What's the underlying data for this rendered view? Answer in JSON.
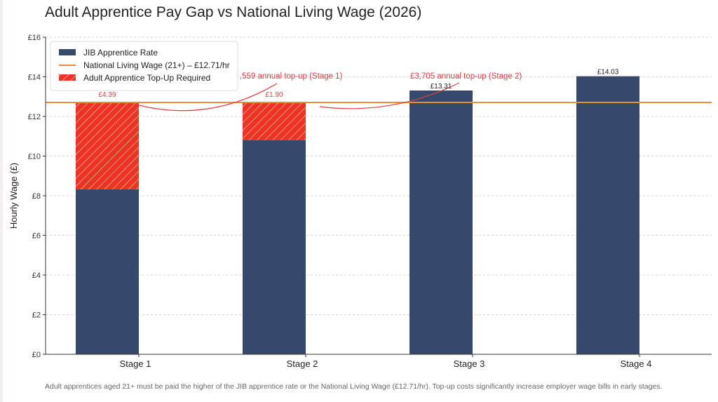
{
  "chart_data": {
    "type": "bar",
    "title": "Adult Apprentice Pay Gap vs National Living Wage (2026)",
    "ylabel": "Hourly Wage (£)",
    "xlabel": "",
    "ylim": [
      0,
      16
    ],
    "yticks": [
      0,
      2,
      4,
      6,
      8,
      10,
      12,
      14,
      16
    ],
    "ytick_labels": [
      "£0",
      "£2",
      "£4",
      "£6",
      "£8",
      "£10",
      "£12",
      "£14",
      "£16"
    ],
    "grid": "horizontal dashed",
    "categories": [
      "Stage 1",
      "Stage 2",
      "Stage 3",
      "Stage 4"
    ],
    "series": [
      {
        "name": "JIB Apprentice Rate",
        "values": [
          8.32,
          10.81,
          13.31,
          14.03
        ],
        "labels": [
          "£8.32",
          "£10.81",
          "£13.31",
          "£14.03"
        ],
        "color": "#354a6b"
      },
      {
        "name": "Adult Apprentice Top-Up Required",
        "values": [
          4.39,
          1.9,
          0,
          0
        ],
        "labels": [
          "£4.39",
          "£1.90",
          "",
          ""
        ],
        "color": "#ee3322",
        "pattern": "hatched",
        "stacked": true
      }
    ],
    "reference_line": {
      "name": "National Living Wage (21+) – £12.71/hr",
      "value": 12.71,
      "color": "#f58a32"
    },
    "legend": "top-left",
    "annotations": [
      {
        "text": ",559 annual top-up (Stage 1)",
        "target": "Stage 1",
        "color": "#e04040"
      },
      {
        "text": "£3,705 annual top-up (Stage 2)",
        "target": "Stage 2",
        "color": "#e04040"
      }
    ]
  },
  "footnote": "Adult apprentices aged 21+ must be paid the higher of the JIB apprentice rate or the National Living Wage (£12.71/hr). Top-up costs significantly increase employer wage bills in early stages."
}
